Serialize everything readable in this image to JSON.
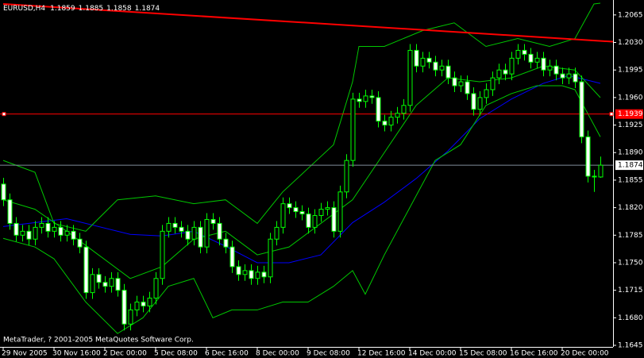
{
  "chart_data": {
    "type": "candlestick",
    "title": "EURUSD,H4",
    "footer": "MetaTrader, ? 2001-2005 MetaQuotes Software Corp.",
    "categories": [
      "29 Nov 2005",
      null,
      null,
      null,
      null,
      null,
      null,
      null,
      "30 Nov 16:00",
      null,
      null,
      null,
      null,
      null,
      null,
      null,
      "2 Dec 00:00",
      null,
      null,
      null,
      null,
      null,
      null,
      null,
      "5 Dec 08:00",
      null,
      null,
      null,
      null,
      null,
      null,
      null,
      "6 Dec 16:00",
      null,
      null,
      null,
      null,
      null,
      null,
      null,
      "8 Dec 00:00",
      null,
      null,
      null,
      null,
      null,
      null,
      null,
      "9 Dec 08:00",
      null,
      null,
      null,
      null,
      null,
      null,
      null,
      "12 Dec 16:00",
      null,
      null,
      null,
      null,
      null,
      null,
      null,
      "14 Dec 00:00",
      null,
      null,
      null,
      null,
      null,
      null,
      null,
      "15 Dec 08:00",
      null,
      null,
      null,
      null,
      null,
      null,
      null,
      "16 Dec 16:00",
      null,
      null,
      null,
      null,
      null,
      null,
      null,
      "20 Dec 00:00",
      null,
      null,
      null,
      null,
      null,
      null
    ],
    "open": [
      1.185,
      1.183,
      1.18,
      1.1785,
      1.179,
      1.178,
      1.1795,
      1.18,
      1.179,
      1.1795,
      1.1785,
      1.179,
      1.178,
      1.177,
      1.1712,
      1.1735,
      1.1725,
      1.172,
      1.173,
      1.1715,
      1.1672,
      1.169,
      1.17,
      1.1695,
      1.1705,
      1.173,
      1.179,
      1.18,
      1.1795,
      1.179,
      1.178,
      1.1795,
      1.177,
      1.1805,
      1.18,
      1.178,
      1.177,
      1.1745,
      1.1735,
      1.174,
      1.173,
      1.1738,
      1.1732,
      1.178,
      1.1795,
      1.1825,
      1.182,
      1.1815,
      1.1812,
      1.1795,
      1.181,
      1.1818,
      1.182,
      1.179,
      1.184,
      1.188,
      1.1958,
      1.1955,
      1.1962,
      1.196,
      1.193,
      1.1925,
      1.1935,
      1.194,
      1.195,
      1.202,
      1.2,
      1.201,
      1.2005,
      1.1995,
      1.2,
      1.1985,
      1.1975,
      1.198,
      1.1965,
      1.1945,
      1.196,
      1.197,
      1.1985,
      1.1995,
      1.199,
      1.201,
      1.202,
      1.2015,
      1.2005,
      1.201,
      1.1995,
      1.2,
      1.199,
      1.1985,
      1.199,
      1.198,
      1.191,
      1.186,
      1.1859
    ],
    "high": [
      1.1858,
      1.1838,
      1.1808,
      1.1798,
      1.1798,
      1.1803,
      1.1808,
      1.1808,
      1.1803,
      1.1803,
      1.1798,
      1.1798,
      1.1788,
      1.1778,
      1.1743,
      1.1743,
      1.1733,
      1.1738,
      1.1738,
      1.1723,
      1.1698,
      1.1708,
      1.1708,
      1.1713,
      1.1738,
      1.1798,
      1.1808,
      1.1808,
      1.1803,
      1.1798,
      1.1803,
      1.1803,
      1.1813,
      1.1813,
      1.1808,
      1.1788,
      1.1778,
      1.1753,
      1.1748,
      1.1748,
      1.1746,
      1.1746,
      1.1788,
      1.1803,
      1.1833,
      1.1833,
      1.1828,
      1.1823,
      1.182,
      1.1818,
      1.1826,
      1.1828,
      1.1828,
      1.1848,
      1.1888,
      1.1966,
      1.1966,
      1.197,
      1.197,
      1.1968,
      1.1938,
      1.1943,
      1.1948,
      1.1958,
      1.2028,
      1.2028,
      1.2018,
      1.2018,
      1.2013,
      1.2008,
      1.2008,
      1.1993,
      1.1988,
      1.1988,
      1.1973,
      1.1968,
      1.1978,
      1.1993,
      1.2003,
      1.2003,
      1.2018,
      1.2028,
      1.2028,
      1.2023,
      1.2018,
      1.2018,
      1.2008,
      1.2008,
      1.1998,
      1.1998,
      1.1998,
      1.1988,
      1.1918,
      1.1868,
      1.1885
    ],
    "low": [
      1.1822,
      1.1792,
      1.1777,
      1.1777,
      1.1772,
      1.1772,
      1.1787,
      1.1782,
      1.1782,
      1.1777,
      1.1777,
      1.1772,
      1.1762,
      1.1704,
      1.1704,
      1.1717,
      1.1712,
      1.1712,
      1.1707,
      1.1664,
      1.1664,
      1.1682,
      1.1687,
      1.1687,
      1.1697,
      1.1722,
      1.1782,
      1.1787,
      1.1782,
      1.1772,
      1.1772,
      1.1762,
      1.1762,
      1.1792,
      1.1772,
      1.1762,
      1.1737,
      1.1727,
      1.1727,
      1.1722,
      1.1722,
      1.1724,
      1.1724,
      1.1772,
      1.1787,
      1.1812,
      1.1807,
      1.1804,
      1.1787,
      1.1787,
      1.1802,
      1.181,
      1.1782,
      1.1782,
      1.1832,
      1.1872,
      1.1947,
      1.1947,
      1.1952,
      1.1922,
      1.1917,
      1.1917,
      1.1927,
      1.1932,
      1.1942,
      1.1992,
      1.1992,
      1.1997,
      1.1987,
      1.1987,
      1.1977,
      1.1967,
      1.1967,
      1.1957,
      1.1937,
      1.1937,
      1.1952,
      1.1962,
      1.1977,
      1.1982,
      1.1982,
      1.2002,
      1.2007,
      1.1997,
      1.1997,
      1.1987,
      1.1987,
      1.1982,
      1.1977,
      1.1977,
      1.1972,
      1.1902,
      1.1852,
      1.184,
      1.1858
    ],
    "close": [
      1.183,
      1.18,
      1.1785,
      1.179,
      1.178,
      1.1795,
      1.18,
      1.179,
      1.1795,
      1.1785,
      1.179,
      1.178,
      1.177,
      1.1712,
      1.1735,
      1.1725,
      1.172,
      1.173,
      1.1715,
      1.1672,
      1.169,
      1.17,
      1.1695,
      1.1705,
      1.173,
      1.179,
      1.18,
      1.1795,
      1.179,
      1.178,
      1.1795,
      1.177,
      1.1805,
      1.18,
      1.178,
      1.177,
      1.1745,
      1.1735,
      1.174,
      1.173,
      1.1738,
      1.1732,
      1.178,
      1.1795,
      1.1825,
      1.182,
      1.1815,
      1.1812,
      1.1795,
      1.181,
      1.1818,
      1.182,
      1.179,
      1.184,
      1.188,
      1.1958,
      1.1955,
      1.1962,
      1.196,
      1.193,
      1.1925,
      1.1935,
      1.194,
      1.195,
      1.202,
      1.2,
      1.201,
      1.2005,
      1.1995,
      1.2,
      1.1985,
      1.1975,
      1.198,
      1.1965,
      1.1945,
      1.196,
      1.197,
      1.1985,
      1.1995,
      1.199,
      1.201,
      1.202,
      1.2015,
      1.2005,
      1.201,
      1.1995,
      1.2,
      1.199,
      1.1985,
      1.199,
      1.198,
      1.191,
      1.186,
      1.1859,
      1.1874
    ],
    "candle_color": "#00ff00",
    "up_fill": "#000000",
    "down_fill": "#ffffff",
    "overlays": [
      {
        "color": "#0000ff",
        "x": [
          0,
          10,
          20,
          25,
          30,
          35,
          40,
          45,
          50,
          55,
          60,
          65,
          70,
          75,
          80,
          85,
          89,
          94
        ],
        "values": [
          1.1796,
          1.1806,
          1.1786,
          1.1784,
          1.179,
          1.1771,
          1.175,
          1.175,
          1.176,
          1.1801,
          1.1827,
          1.1857,
          1.1892,
          1.1933,
          1.1958,
          1.1978,
          1.1988,
          1.1978
        ]
      },
      {
        "color": "#00c800",
        "x": [
          0,
          5,
          8,
          13,
          18,
          24,
          30,
          35,
          40,
          44,
          48,
          52,
          55,
          56,
          60,
          66,
          71,
          76,
          81,
          86,
          90,
          93,
          94
        ],
        "values": [
          1.188,
          1.1865,
          1.18,
          1.179,
          1.183,
          1.1835,
          1.1825,
          1.183,
          1.18,
          1.184,
          1.187,
          1.19,
          1.198,
          1.2025,
          1.2025,
          1.2045,
          1.2055,
          1.2025,
          1.2035,
          1.2025,
          1.2035,
          1.2079,
          1.208
        ]
      },
      {
        "color": "#00c800",
        "x": [
          0,
          5,
          10,
          15,
          20,
          25,
          30,
          35,
          40,
          45,
          50,
          55,
          60,
          65,
          70,
          75,
          80,
          85,
          90,
          94
        ],
        "values": [
          1.183,
          1.1818,
          1.179,
          1.176,
          1.173,
          1.1745,
          1.178,
          1.179,
          1.176,
          1.177,
          1.18,
          1.183,
          1.189,
          1.195,
          1.1985,
          1.198,
          1.1985,
          1.2,
          1.1995,
          1.196
        ]
      },
      {
        "color": "#00c800",
        "x": [
          0,
          5,
          8,
          13,
          18,
          22,
          26,
          30,
          33,
          36,
          40,
          44,
          48,
          52,
          55,
          57,
          60,
          64,
          68,
          72,
          76,
          80,
          84,
          88,
          90,
          92,
          94
        ],
        "values": [
          1.1781,
          1.177,
          1.1755,
          1.17,
          1.166,
          1.168,
          1.172,
          1.173,
          1.168,
          1.169,
          1.169,
          1.17,
          1.17,
          1.172,
          1.174,
          1.171,
          1.176,
          1.182,
          1.188,
          1.19,
          1.195,
          1.1965,
          1.1975,
          1.1975,
          1.197,
          1.194,
          1.191
        ]
      },
      {
        "color": "#ff0000",
        "x": [
          0,
          96
        ],
        "values": [
          1.2079,
          1.2031
        ]
      }
    ],
    "levels": [
      {
        "value": 1.1939,
        "color": "#ff0000"
      },
      {
        "value": 1.1874,
        "color": "#7f8c99"
      }
    ],
    "ylim": [
      1.1643,
      1.2084
    ],
    "yticks": [
      1.2065,
      {
        "value": 1.203,
        "label": "1.2030"
      },
      1.1995,
      {
        "value": 1.196,
        "label": "1.1960"
      },
      1.1925,
      {
        "value": 1.189,
        "label": "1.1890"
      },
      1.1855,
      {
        "value": 1.182,
        "label": "1.1820"
      },
      1.1785,
      {
        "value": 1.175,
        "label": "1.1750"
      },
      1.1715,
      {
        "value": 1.168,
        "label": "1.1680"
      },
      1.1645
    ]
  }
}
